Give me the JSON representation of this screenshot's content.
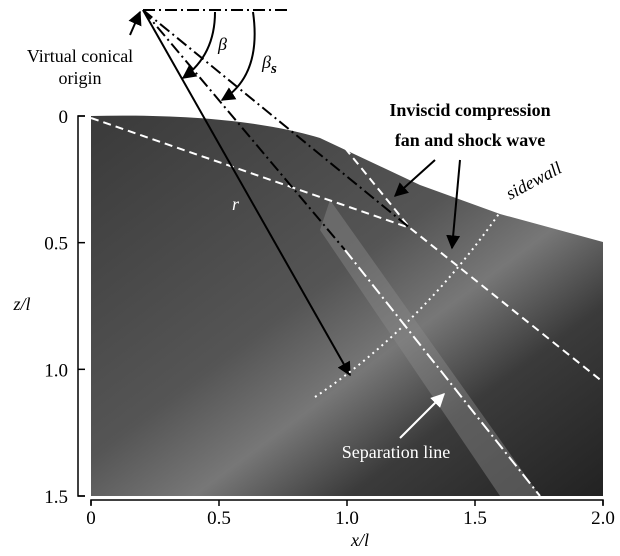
{
  "chart_data": {
    "type": "image",
    "xlabel": "x/l",
    "ylabel": "z/l",
    "xlim": [
      0,
      2
    ],
    "ylim": [
      1.5,
      0
    ],
    "xticks": [
      0,
      0.5,
      {
        "value": 1,
        "label": "1.0"
      },
      1.5,
      {
        "value": 2,
        "label": "2.0"
      }
    ],
    "yticks": [
      0,
      0.5,
      {
        "value": 1,
        "label": "1.0"
      },
      1.5
    ],
    "annotations": {
      "origin": [
        "Virtual conical",
        "origin"
      ],
      "beta": "β",
      "beta_s": "β",
      "beta_s_sub": "s",
      "fan": [
        "Inviscid compression",
        "fan and shock wave"
      ],
      "sidewall": "sidewall",
      "r": "r",
      "separation": "Separation line"
    }
  }
}
